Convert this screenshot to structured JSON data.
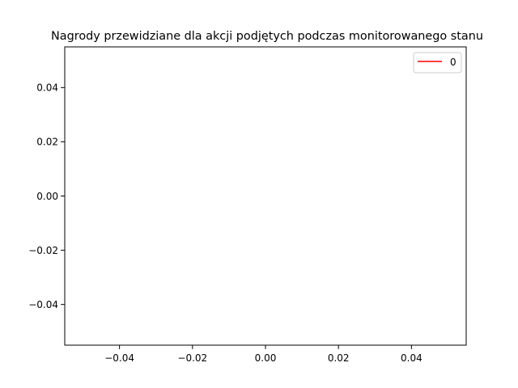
{
  "chart_data": {
    "type": "line",
    "title": "Nagrody przewidziane dla akcji podjętych podczas monitorowanego stanu",
    "xlabel": "",
    "ylabel": "",
    "xlim": [
      -0.055,
      0.055
    ],
    "ylim": [
      -0.055,
      0.055
    ],
    "xticks": [
      -0.04,
      -0.02,
      0.0,
      0.02,
      0.04
    ],
    "yticks": [
      -0.04,
      -0.02,
      0.0,
      0.02,
      0.04
    ],
    "xtick_labels": [
      "−0.04",
      "−0.02",
      "0.00",
      "0.02",
      "0.04"
    ],
    "ytick_labels": [
      "−0.04",
      "−0.02",
      "0.00",
      "0.02",
      "0.04"
    ],
    "grid": false,
    "legend_position": "top-right",
    "series": [
      {
        "name": "0",
        "color": "#ff0000",
        "x": [],
        "y": []
      }
    ]
  }
}
